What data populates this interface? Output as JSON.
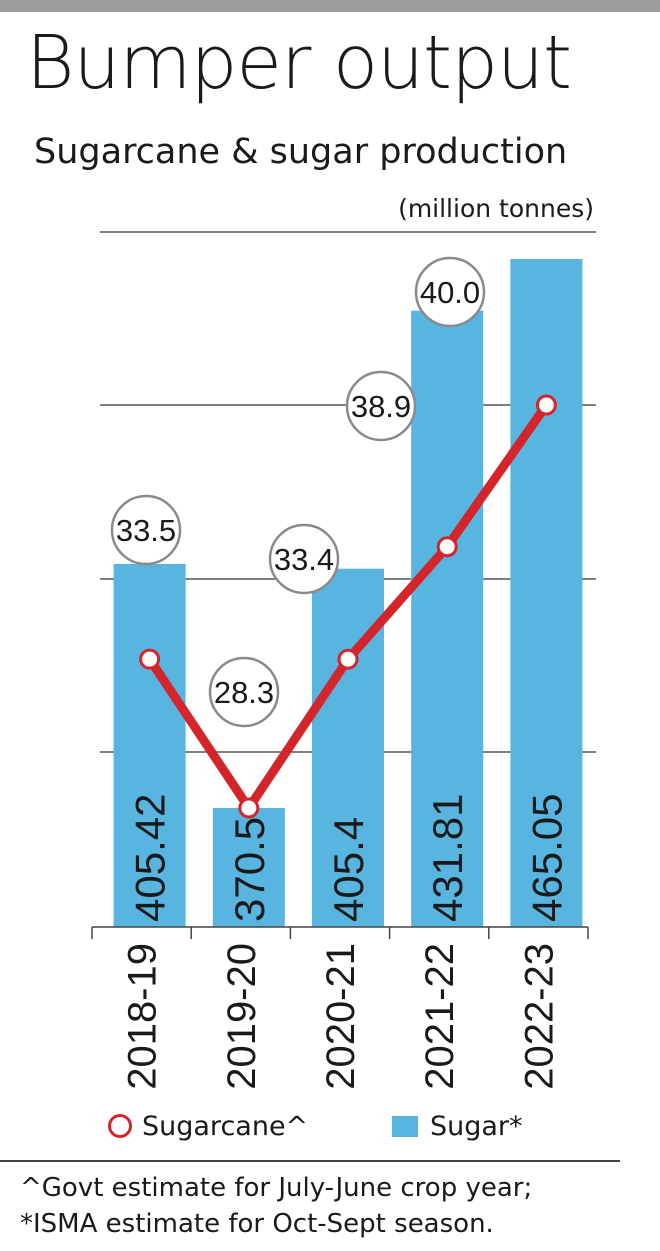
{
  "header": {
    "title": "Bumper output",
    "subtitle": "Sugarcane & sugar production",
    "units": "(million tonnes)"
  },
  "colors": {
    "bar": "#57b5e0",
    "line": "#d4252b",
    "topbar": "#9d9d9d"
  },
  "chart_data": {
    "type": "bar",
    "title": "Bumper output",
    "subtitle": "Sugarcane & sugar production",
    "ylabel": "(million tonnes)",
    "categories": [
      "2018-19",
      "2019-20",
      "2020-21",
      "2021-22",
      "2022-23"
    ],
    "series": [
      {
        "name": "Sugar*",
        "type": "bar",
        "values": [
          33.5,
          28.3,
          33.4,
          38.9,
          40.0
        ],
        "labels": [
          "33.5",
          "28.3",
          "33.4",
          "38.9",
          "40.0"
        ]
      },
      {
        "name": "Sugarcane^",
        "type": "line",
        "values": [
          405.42,
          370.5,
          405.4,
          431.81,
          465.05
        ],
        "labels": [
          "405.42",
          "370.5",
          "405.4",
          "431.81",
          "465.05"
        ]
      }
    ],
    "grid": true,
    "legend_position": "bottom"
  },
  "legend": {
    "sugarcane": "Sugarcane^",
    "sugar": "Sugar*"
  },
  "footnotes": [
    "^Govt estimate for July-June crop year;",
    "*ISMA estimate for Oct-Sept season."
  ]
}
